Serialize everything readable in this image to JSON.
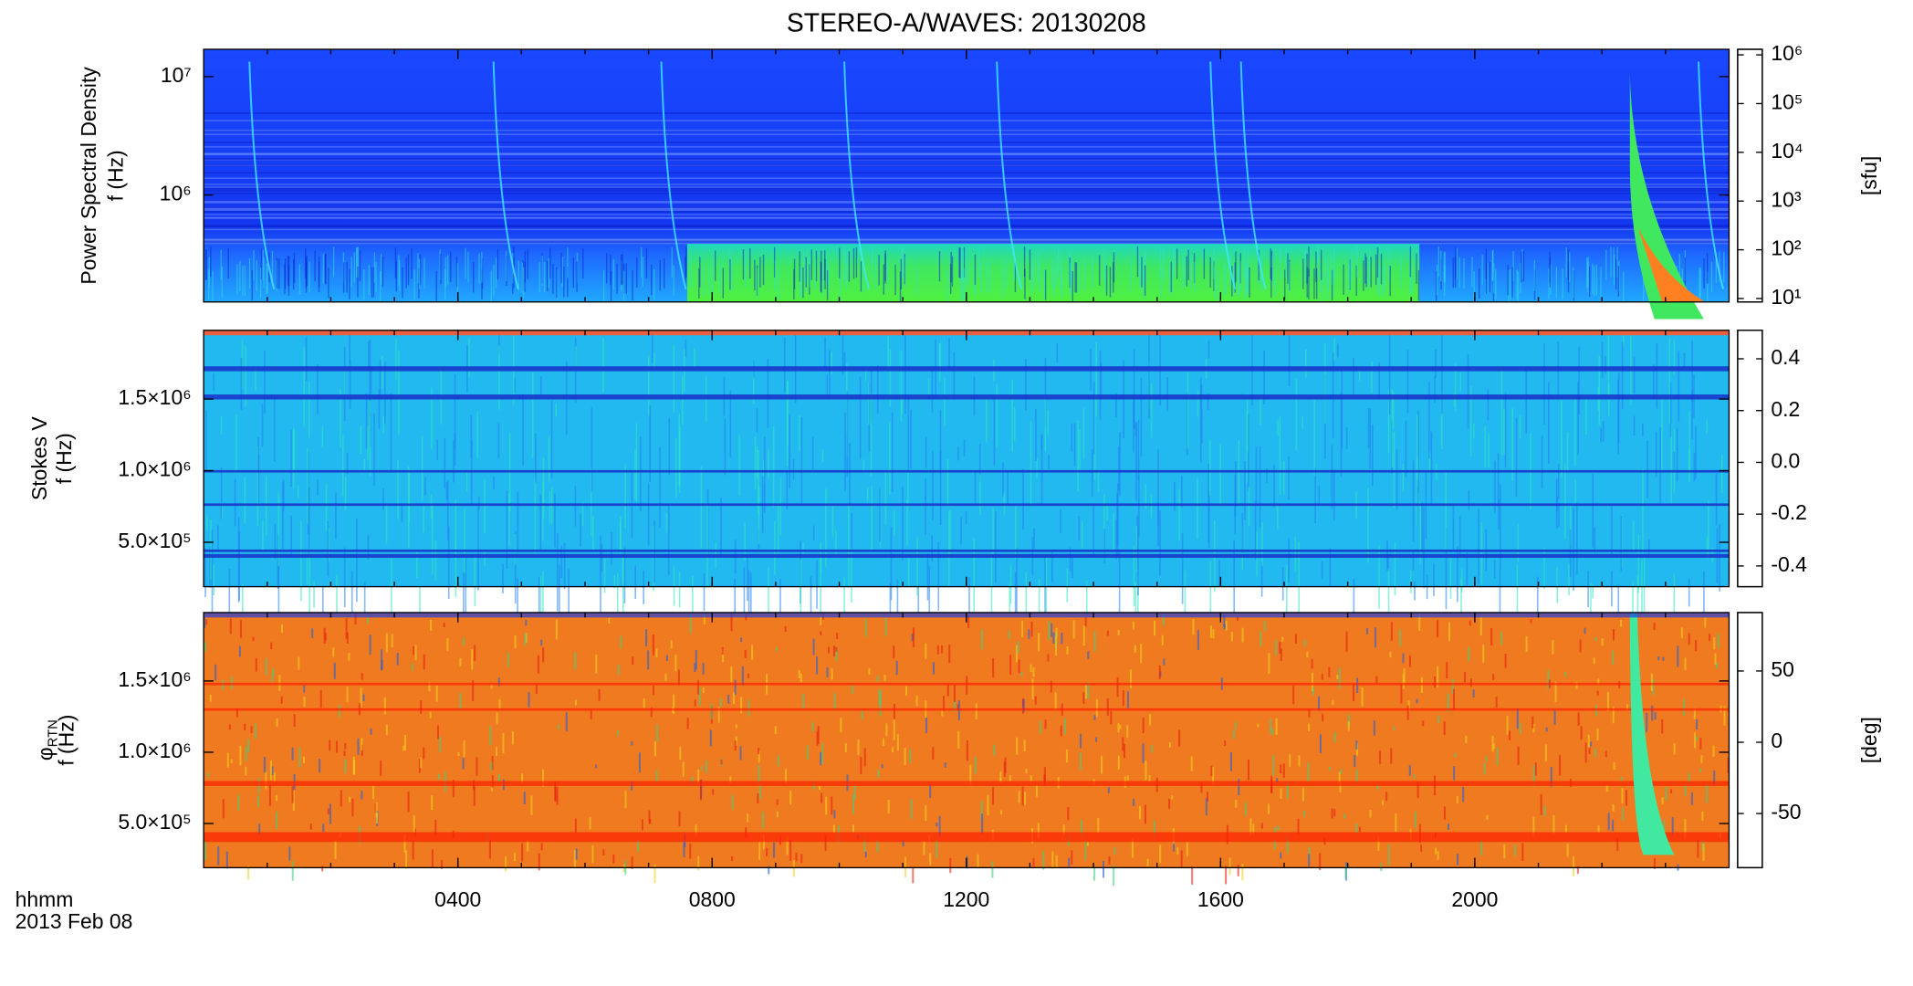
{
  "title": "STEREO-A/WAVES: 20130208",
  "time_label": "hhmm",
  "date_label": "2013 Feb 08",
  "chart_data": [
    {
      "type": "heatmap",
      "ylabel": "Power Spectral Density",
      "ylabel2": "f (Hz)",
      "yscale": "log",
      "ylim": [
        125000,
        17000000
      ],
      "yticks": [
        {
          "value": 1000000,
          "label": "10⁶"
        },
        {
          "value": 10000000,
          "label": "10⁷"
        }
      ],
      "colorbar": {
        "scale": "log",
        "lim": [
          8.5,
          1300000
        ],
        "label": "[sfu]",
        "ticks": [
          {
            "value": 10,
            "label": "10¹"
          },
          {
            "value": 100,
            "label": "10²"
          },
          {
            "value": 1000,
            "label": "10³"
          },
          {
            "value": 10000,
            "label": "10⁴"
          },
          {
            "value": 100000,
            "label": "10⁵"
          },
          {
            "value": 1000000,
            "label": "10⁶"
          }
        ]
      }
    },
    {
      "type": "heatmap",
      "ylabel": "Stokes V",
      "ylabel2": "f (Hz)",
      "yscale": "linear",
      "ylim": [
        190000,
        1980000
      ],
      "yticks": [
        {
          "value": 500000,
          "label": "5.0×10⁵"
        },
        {
          "value": 1000000,
          "label": "1.0×10⁶"
        },
        {
          "value": 1500000,
          "label": "1.5×10⁶"
        }
      ],
      "colorbar": {
        "scale": "linear",
        "lim": [
          -0.48,
          0.51
        ],
        "ticks": [
          {
            "value": -0.4,
            "label": "-0.4"
          },
          {
            "value": -0.2,
            "label": "-0.2"
          },
          {
            "value": 0,
            "label": "0.0"
          },
          {
            "value": 0.2,
            "label": "0.2"
          },
          {
            "value": 0.4,
            "label": "0.4"
          }
        ]
      }
    },
    {
      "type": "heatmap",
      "ylabel": "φ",
      "ylabel_sub": "RTN",
      "ylabel2": "f (Hz)",
      "yscale": "linear",
      "ylim": [
        190000,
        1980000
      ],
      "yticks": [
        {
          "value": 500000,
          "label": "5.0×10⁵"
        },
        {
          "value": 1000000,
          "label": "1.0×10⁶"
        },
        {
          "value": 1500000,
          "label": "1.5×10⁶"
        }
      ],
      "colorbar": {
        "scale": "linear",
        "lim": [
          -88,
          91
        ],
        "label": "[deg]",
        "ticks": [
          -50,
          0,
          50
        ]
      },
      "xlim": [
        0,
        24
      ],
      "xticks": [
        {
          "value": 4,
          "label": "0400"
        },
        {
          "value": 8,
          "label": "0800"
        },
        {
          "value": 12,
          "label": "1200"
        },
        {
          "value": 16,
          "label": "1600"
        },
        {
          "value": 20,
          "label": "2000"
        }
      ]
    }
  ]
}
